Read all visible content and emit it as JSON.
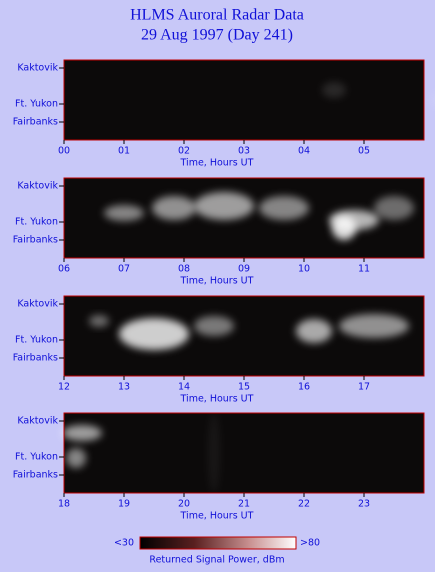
{
  "title": [
    "HLMS Auroral Radar Data",
    "29 Aug 1997 (Day 241)"
  ],
  "panels": [
    {
      "xticks": [
        "00",
        "01",
        "02",
        "03",
        "04",
        "05"
      ],
      "ylabels": [
        "Kaktovik",
        "Ft. Yukon",
        "Fairbanks"
      ],
      "xlabel": "Time, Hours UT"
    },
    {
      "xticks": [
        "06",
        "07",
        "08",
        "09",
        "10",
        "11"
      ],
      "ylabels": [
        "Kaktovik",
        "Ft. Yukon",
        "Fairbanks"
      ],
      "xlabel": "Time, Hours UT"
    },
    {
      "xticks": [
        "12",
        "13",
        "14",
        "15",
        "16",
        "17"
      ],
      "ylabels": [
        "Kaktovik",
        "Ft. Yukon",
        "Fairbanks"
      ],
      "xlabel": "Time, Hours UT"
    },
    {
      "xticks": [
        "18",
        "19",
        "20",
        "21",
        "22",
        "23"
      ],
      "ylabels": [
        "Kaktovik",
        "Ft. Yukon",
        "Fairbanks"
      ],
      "xlabel": "Time, Hours UT"
    }
  ],
  "colorbar": {
    "min_label": "<30",
    "max_label": ">80",
    "label": "Returned Signal Power, dBm"
  }
}
